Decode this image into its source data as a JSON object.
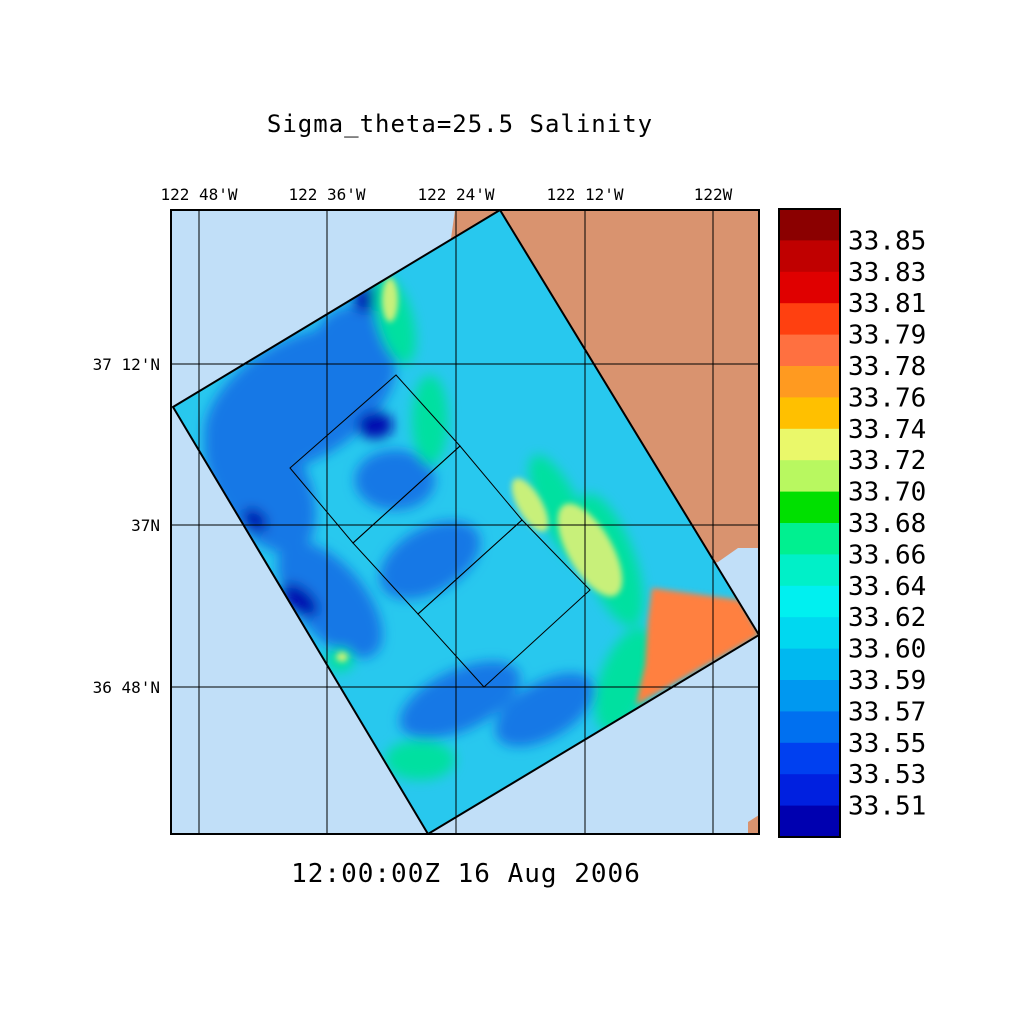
{
  "title": "Sigma_theta=25.5 Salinity",
  "timestamp": "12:00:00Z  16 Aug 2006",
  "lon_ticks": [
    "122 48'W",
    "122 36'W",
    "122 24'W",
    "122 12'W",
    "122W"
  ],
  "lat_ticks": [
    "37 12'N",
    "37N",
    "36 48'N"
  ],
  "colorbar": {
    "labels": [
      "33.85",
      "33.83",
      "33.81",
      "33.79",
      "33.78",
      "33.76",
      "33.74",
      "33.72",
      "33.70",
      "33.68",
      "33.66",
      "33.64",
      "33.62",
      "33.60",
      "33.59",
      "33.57",
      "33.55",
      "33.53",
      "33.51"
    ],
    "colors": [
      "#8b0000",
      "#c00000",
      "#e00000",
      "#ff4010",
      "#ff7040",
      "#ff9a20",
      "#ffc000",
      "#eaf86a",
      "#b8f860",
      "#00e000",
      "#00f090",
      "#00f0c8",
      "#00f0f0",
      "#00d8f0",
      "#00b8f0",
      "#0098f0",
      "#0070f0",
      "#0040f0",
      "#0020e0",
      "#0000b0"
    ]
  },
  "map_colors": {
    "ocean": "#c1dff8",
    "land": "#d9936f",
    "domain_base": "#28c8ee",
    "offshore_low": "#1478e6",
    "nearshore_mid": "#00e0a0",
    "nearshore_high": "#ff8040"
  }
}
